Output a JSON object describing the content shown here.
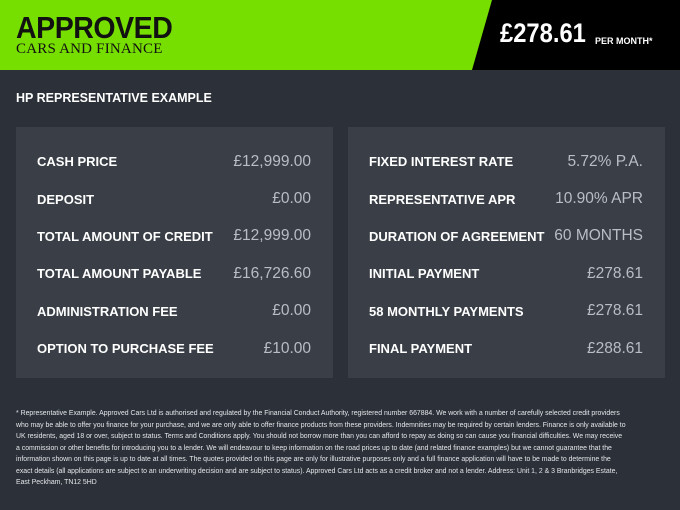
{
  "brand": {
    "logo_line1": "APPROVED",
    "logo_line2": "CARS AND FINANCE",
    "accent": "#77df00"
  },
  "header": {
    "monthly_price": "£278.61",
    "per_month": "PER MONTH*"
  },
  "section_title": "HP REPRESENTATIVE EXAMPLE",
  "left": [
    {
      "label": "CASH PRICE",
      "value": "£12,999.00"
    },
    {
      "label": "DEPOSIT",
      "value": "£0.00"
    },
    {
      "label": "TOTAL AMOUNT OF CREDIT",
      "value": "£12,999.00"
    },
    {
      "label": "TOTAL AMOUNT PAYABLE",
      "value": "£16,726.60"
    },
    {
      "label": "ADMINISTRATION FEE",
      "value": "£0.00"
    },
    {
      "label": "OPTION TO PURCHASE FEE",
      "value": "£10.00"
    }
  ],
  "right": [
    {
      "label": "FIXED INTEREST RATE",
      "value": "5.72% P.A."
    },
    {
      "label": "REPRESENTATIVE APR",
      "value": "10.90% APR"
    },
    {
      "label": "DURATION OF AGREEMENT",
      "value": "60 MONTHS"
    },
    {
      "label": "INITIAL PAYMENT",
      "value": "£278.61"
    },
    {
      "label": "58 MONTHLY PAYMENTS",
      "value": "£278.61"
    },
    {
      "label": "FINAL PAYMENT",
      "value": "£288.61"
    }
  ],
  "footer": "* Representative Example. Approved Cars Ltd is authorised and regulated by the Financial Conduct Authority, registered number 667884. We work with a number of carefully selected credit providers who may be able to offer you finance for your purchase, and we are only able to offer finance products from these providers. Indemnities may be required by certain lenders. Finance is only available to UK residents, aged 18 or over, subject to status. Terms and Conditions apply. You should not borrow more than you can afford to repay as doing so can cause you financial difficulties. We may receive a commission or other benefits for introducing you to a lender. We will endeavour to keep information on the road prices up to date (and related finance examples) but we cannot guarantee that the information shown on this page is up to date at all times. The quotes provided on this page are only for illustrative purposes only and a full finance application will have to be made to determine the exact details (all applications are subject to an underwriting decision and are subject to status). Approved Cars Ltd acts as a credit broker and not a lender. Address: Unit 1, 2 & 3 Branbridges Estate, East Peckham, TN12 5HD"
}
